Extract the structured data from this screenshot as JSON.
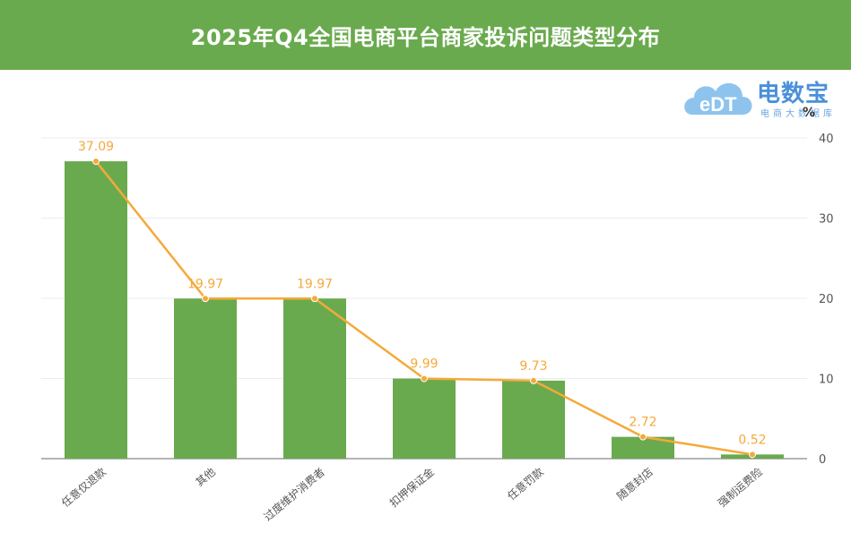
{
  "chart_data": {
    "type": "bar",
    "title": "2025年Q4全国电商平台商家投诉问题类型分布",
    "unit": "%",
    "categories": [
      "任意仅退款",
      "其他",
      "过度维护消费者",
      "扣押保证金",
      "任意罚款",
      "随意封店",
      "强制运费险"
    ],
    "series": [
      {
        "type": "bar",
        "values": [
          37.09,
          19.97,
          19.97,
          9.99,
          9.73,
          2.72,
          0.52
        ],
        "color": "#6aaa4e"
      },
      {
        "type": "line",
        "values": [
          37.09,
          19.97,
          19.97,
          9.99,
          9.73,
          2.72,
          0.52
        ],
        "color": "#f5a93a"
      }
    ],
    "data_labels": [
      "37.09",
      "19.97",
      "19.97",
      "9.99",
      "9.73",
      "2.72",
      "0.52"
    ],
    "yaxis": {
      "position": "right",
      "ylim": [
        0,
        40
      ],
      "ticks": [
        "0",
        "10",
        "20",
        "30",
        "40"
      ]
    },
    "grid": true,
    "legend": "none"
  },
  "logo": {
    "icon_text": "eDT",
    "name": "电数宝",
    "sub": "电商大数据库"
  }
}
